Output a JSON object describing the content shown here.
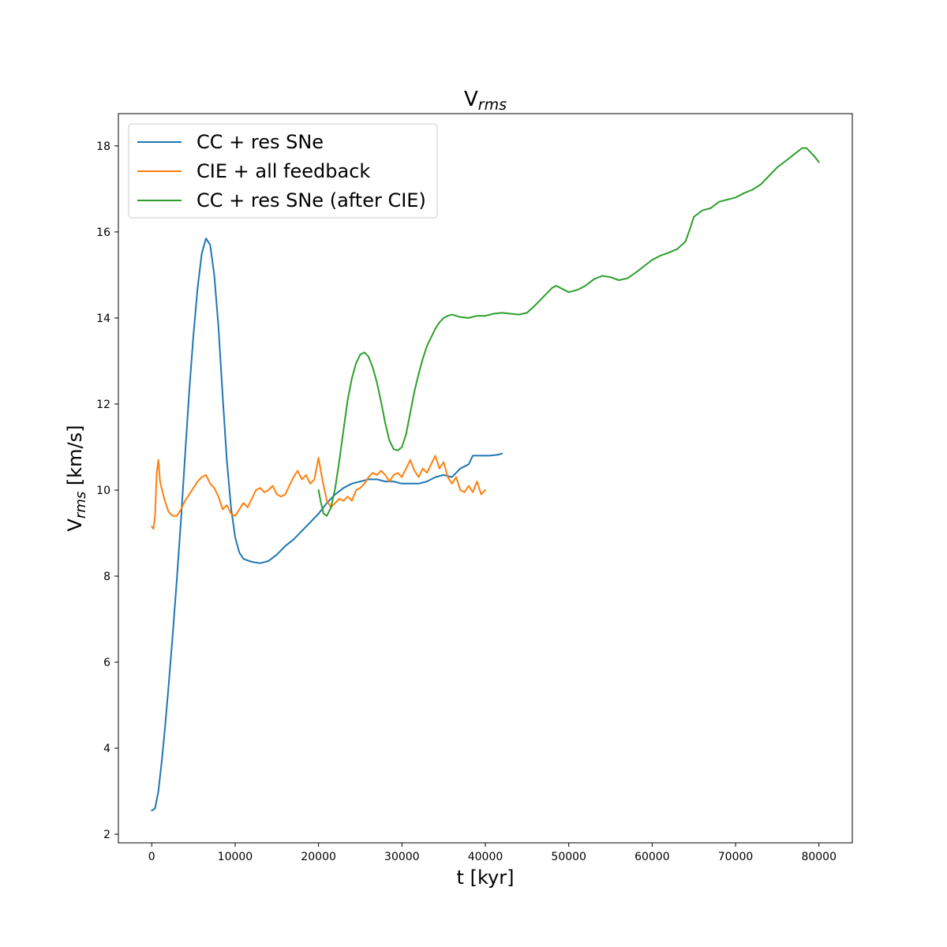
{
  "chart_data": {
    "type": "line",
    "title_main": "V",
    "title_sub": "rms",
    "xlabel": "t [kyr]",
    "ylabel_main": "V",
    "ylabel_sub": "rms",
    "ylabel_rest": " [km/s]",
    "xlim": [
      -4000,
      84000
    ],
    "ylim": [
      1.8,
      18.75
    ],
    "xticks": [
      0,
      10000,
      20000,
      30000,
      40000,
      50000,
      60000,
      70000,
      80000
    ],
    "yticks": [
      2,
      4,
      6,
      8,
      10,
      12,
      14,
      16,
      18
    ],
    "grid": false,
    "legend_position": "top-left",
    "series": [
      {
        "name": "CC + res SNe",
        "color": "#1f77b4",
        "points": [
          [
            0,
            2.55
          ],
          [
            400,
            2.6
          ],
          [
            800,
            3.0
          ],
          [
            1200,
            3.7
          ],
          [
            1600,
            4.5
          ],
          [
            2000,
            5.4
          ],
          [
            2500,
            6.6
          ],
          [
            3000,
            7.9
          ],
          [
            3500,
            9.3
          ],
          [
            4000,
            10.8
          ],
          [
            4500,
            12.3
          ],
          [
            5000,
            13.6
          ],
          [
            5500,
            14.7
          ],
          [
            6000,
            15.5
          ],
          [
            6500,
            15.85
          ],
          [
            7000,
            15.7
          ],
          [
            7500,
            15.0
          ],
          [
            8000,
            13.8
          ],
          [
            8500,
            12.2
          ],
          [
            9000,
            10.7
          ],
          [
            9500,
            9.6
          ],
          [
            10000,
            8.9
          ],
          [
            10500,
            8.55
          ],
          [
            11000,
            8.4
          ],
          [
            12000,
            8.33
          ],
          [
            13000,
            8.3
          ],
          [
            14000,
            8.35
          ],
          [
            15000,
            8.5
          ],
          [
            16000,
            8.7
          ],
          [
            17000,
            8.85
          ],
          [
            18000,
            9.05
          ],
          [
            19000,
            9.25
          ],
          [
            20000,
            9.45
          ],
          [
            21000,
            9.7
          ],
          [
            22000,
            9.9
          ],
          [
            23000,
            10.05
          ],
          [
            24000,
            10.15
          ],
          [
            25000,
            10.2
          ],
          [
            26000,
            10.25
          ],
          [
            27000,
            10.25
          ],
          [
            28000,
            10.2
          ],
          [
            29000,
            10.2
          ],
          [
            30000,
            10.15
          ],
          [
            31000,
            10.15
          ],
          [
            32000,
            10.15
          ],
          [
            33000,
            10.2
          ],
          [
            34000,
            10.3
          ],
          [
            35000,
            10.35
          ],
          [
            36000,
            10.3
          ],
          [
            37000,
            10.5
          ],
          [
            38000,
            10.6
          ],
          [
            38500,
            10.8
          ],
          [
            39500,
            10.8
          ],
          [
            40500,
            10.8
          ],
          [
            41500,
            10.82
          ],
          [
            42000,
            10.85
          ]
        ]
      },
      {
        "name": "CIE + all feedback",
        "color": "#ff7f0e",
        "points": [
          [
            0,
            9.15
          ],
          [
            200,
            9.1
          ],
          [
            400,
            9.4
          ],
          [
            600,
            10.4
          ],
          [
            800,
            10.7
          ],
          [
            1000,
            10.2
          ],
          [
            1500,
            9.8
          ],
          [
            2000,
            9.5
          ],
          [
            2500,
            9.4
          ],
          [
            3000,
            9.4
          ],
          [
            3500,
            9.55
          ],
          [
            4000,
            9.75
          ],
          [
            4500,
            9.9
          ],
          [
            5000,
            10.05
          ],
          [
            5500,
            10.2
          ],
          [
            6000,
            10.3
          ],
          [
            6500,
            10.35
          ],
          [
            7000,
            10.15
          ],
          [
            7500,
            10.05
          ],
          [
            8000,
            9.85
          ],
          [
            8500,
            9.55
          ],
          [
            9000,
            9.65
          ],
          [
            9500,
            9.45
          ],
          [
            10000,
            9.4
          ],
          [
            10500,
            9.55
          ],
          [
            11000,
            9.7
          ],
          [
            11500,
            9.6
          ],
          [
            12000,
            9.8
          ],
          [
            12500,
            10.0
          ],
          [
            13000,
            10.05
          ],
          [
            13500,
            9.95
          ],
          [
            14000,
            10.0
          ],
          [
            14500,
            10.1
          ],
          [
            15000,
            9.9
          ],
          [
            15500,
            9.85
          ],
          [
            16000,
            9.9
          ],
          [
            16500,
            10.1
          ],
          [
            17000,
            10.3
          ],
          [
            17500,
            10.45
          ],
          [
            18000,
            10.25
          ],
          [
            18500,
            10.35
          ],
          [
            19000,
            10.15
          ],
          [
            19500,
            10.25
          ],
          [
            20000,
            10.75
          ],
          [
            20500,
            10.2
          ],
          [
            21000,
            9.75
          ],
          [
            21500,
            9.6
          ],
          [
            22000,
            9.7
          ],
          [
            22500,
            9.8
          ],
          [
            23000,
            9.75
          ],
          [
            23500,
            9.85
          ],
          [
            24000,
            9.75
          ],
          [
            24500,
            10.0
          ],
          [
            25000,
            10.05
          ],
          [
            25500,
            10.15
          ],
          [
            26000,
            10.3
          ],
          [
            26500,
            10.4
          ],
          [
            27000,
            10.35
          ],
          [
            27500,
            10.45
          ],
          [
            28000,
            10.35
          ],
          [
            28500,
            10.2
          ],
          [
            29000,
            10.35
          ],
          [
            29500,
            10.4
          ],
          [
            30000,
            10.3
          ],
          [
            30500,
            10.5
          ],
          [
            31000,
            10.7
          ],
          [
            31500,
            10.45
          ],
          [
            32000,
            10.3
          ],
          [
            32500,
            10.5
          ],
          [
            33000,
            10.4
          ],
          [
            33500,
            10.6
          ],
          [
            34000,
            10.8
          ],
          [
            34500,
            10.5
          ],
          [
            35000,
            10.65
          ],
          [
            35500,
            10.3
          ],
          [
            36000,
            10.15
          ],
          [
            36500,
            10.3
          ],
          [
            37000,
            10.0
          ],
          [
            37500,
            9.95
          ],
          [
            38000,
            10.1
          ],
          [
            38500,
            9.95
          ],
          [
            39000,
            10.2
          ],
          [
            39500,
            9.9
          ],
          [
            40000,
            10.0
          ]
        ]
      },
      {
        "name": "CC + res SNe (after CIE)",
        "color": "#2ca02c",
        "points": [
          [
            20000,
            10.0
          ],
          [
            20300,
            9.7
          ],
          [
            20600,
            9.45
          ],
          [
            21000,
            9.4
          ],
          [
            21500,
            9.6
          ],
          [
            22000,
            10.05
          ],
          [
            22500,
            10.7
          ],
          [
            23000,
            11.4
          ],
          [
            23500,
            12.1
          ],
          [
            24000,
            12.6
          ],
          [
            24500,
            12.95
          ],
          [
            25000,
            13.15
          ],
          [
            25500,
            13.2
          ],
          [
            26000,
            13.1
          ],
          [
            26500,
            12.85
          ],
          [
            27000,
            12.5
          ],
          [
            27500,
            12.05
          ],
          [
            28000,
            11.55
          ],
          [
            28500,
            11.15
          ],
          [
            29000,
            10.95
          ],
          [
            29500,
            10.92
          ],
          [
            30000,
            11.0
          ],
          [
            30500,
            11.3
          ],
          [
            31000,
            11.8
          ],
          [
            31500,
            12.3
          ],
          [
            32000,
            12.7
          ],
          [
            32500,
            13.05
          ],
          [
            33000,
            13.35
          ],
          [
            33500,
            13.55
          ],
          [
            34000,
            13.75
          ],
          [
            34500,
            13.9
          ],
          [
            35000,
            14.0
          ],
          [
            35500,
            14.05
          ],
          [
            36000,
            14.08
          ],
          [
            37000,
            14.02
          ],
          [
            38000,
            14.0
          ],
          [
            39000,
            14.05
          ],
          [
            40000,
            14.05
          ],
          [
            41000,
            14.1
          ],
          [
            42000,
            14.12
          ],
          [
            43000,
            14.1
          ],
          [
            44000,
            14.08
          ],
          [
            45000,
            14.12
          ],
          [
            46000,
            14.3
          ],
          [
            47000,
            14.5
          ],
          [
            48000,
            14.7
          ],
          [
            48500,
            14.75
          ],
          [
            49000,
            14.7
          ],
          [
            50000,
            14.6
          ],
          [
            51000,
            14.65
          ],
          [
            52000,
            14.75
          ],
          [
            53000,
            14.9
          ],
          [
            54000,
            14.98
          ],
          [
            55000,
            14.95
          ],
          [
            56000,
            14.88
          ],
          [
            57000,
            14.92
          ],
          [
            58000,
            15.05
          ],
          [
            59000,
            15.2
          ],
          [
            60000,
            15.35
          ],
          [
            61000,
            15.45
          ],
          [
            62000,
            15.52
          ],
          [
            63000,
            15.6
          ],
          [
            64000,
            15.78
          ],
          [
            64500,
            16.05
          ],
          [
            65000,
            16.35
          ],
          [
            66000,
            16.5
          ],
          [
            67000,
            16.55
          ],
          [
            68000,
            16.7
          ],
          [
            69000,
            16.75
          ],
          [
            70000,
            16.8
          ],
          [
            71000,
            16.9
          ],
          [
            72000,
            16.98
          ],
          [
            73000,
            17.1
          ],
          [
            74000,
            17.3
          ],
          [
            75000,
            17.5
          ],
          [
            76000,
            17.65
          ],
          [
            77000,
            17.8
          ],
          [
            78000,
            17.95
          ],
          [
            78500,
            17.95
          ],
          [
            79000,
            17.85
          ],
          [
            79500,
            17.75
          ],
          [
            80000,
            17.62
          ]
        ]
      }
    ]
  }
}
